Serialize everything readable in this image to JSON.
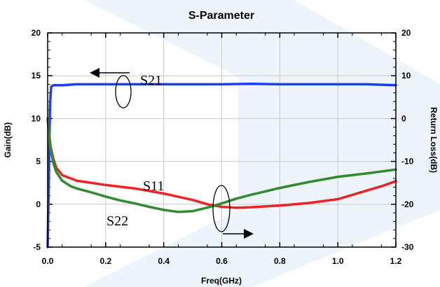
{
  "chart_data": {
    "type": "line",
    "title": "S-Parameter",
    "xlabel": "Freq(GHz)",
    "ylabel": "Gain(dB)",
    "y2label": "Return Loss(dB)",
    "xlim": [
      0.0,
      1.2
    ],
    "ylim": [
      -5,
      20
    ],
    "y2lim": [
      -30,
      20
    ],
    "grid": true,
    "x_ticks": [
      "0.0",
      "0.2",
      "0.4",
      "0.6",
      "0.8",
      "1.0",
      "1.2"
    ],
    "y_ticks": [
      "-5",
      "0",
      "5",
      "10",
      "15",
      "20"
    ],
    "y2_ticks": [
      "-30",
      "-20",
      "-10",
      "0",
      "10",
      "20"
    ],
    "series": [
      {
        "name": "S21",
        "axis": "left",
        "color": "#1e3cf0",
        "x": [
          0.0,
          0.005,
          0.008,
          0.012,
          0.02,
          0.05,
          0.1,
          0.2,
          0.3,
          0.4,
          0.5,
          0.6,
          0.7,
          0.8,
          0.9,
          1.0,
          1.1,
          1.2
        ],
        "y": [
          -5.0,
          5.0,
          11.5,
          13.7,
          13.9,
          13.9,
          14.0,
          14.0,
          14.0,
          14.0,
          14.0,
          14.0,
          14.05,
          14.0,
          14.0,
          14.0,
          14.0,
          13.9
        ]
      },
      {
        "name": "S11",
        "axis": "right",
        "color": "#ee2222",
        "x": [
          0.0,
          0.01,
          0.02,
          0.03,
          0.05,
          0.1,
          0.2,
          0.3,
          0.4,
          0.5,
          0.55,
          0.6,
          0.65,
          0.7,
          0.8,
          0.9,
          1.0,
          1.1,
          1.15,
          1.2
        ],
        "y": [
          0.0,
          -6.5,
          -9.5,
          -11.5,
          -13.2,
          -14.5,
          -15.5,
          -16.3,
          -17.5,
          -19.0,
          -20.0,
          -20.6,
          -20.8,
          -20.7,
          -20.3,
          -19.7,
          -18.8,
          -16.8,
          -15.8,
          -14.6
        ]
      },
      {
        "name": "S22",
        "axis": "right",
        "color": "#2e8b2e",
        "x": [
          0.0,
          0.01,
          0.02,
          0.03,
          0.05,
          0.08,
          0.1,
          0.15,
          0.2,
          0.25,
          0.3,
          0.35,
          0.4,
          0.45,
          0.5,
          0.55,
          0.6,
          0.65,
          0.7,
          0.75,
          0.8,
          0.9,
          1.0,
          1.1,
          1.2
        ],
        "y": [
          0.0,
          -7.0,
          -10.5,
          -12.5,
          -14.5,
          -15.8,
          -16.3,
          -17.2,
          -18.2,
          -19.1,
          -19.8,
          -20.6,
          -21.3,
          -21.8,
          -21.6,
          -20.8,
          -19.8,
          -18.7,
          -17.8,
          -17.0,
          -16.2,
          -14.8,
          -13.6,
          -12.8,
          -11.9
        ]
      }
    ],
    "annotations": [
      {
        "text": "S21",
        "direction": "left"
      },
      {
        "text": "S11"
      },
      {
        "text": "S22"
      }
    ]
  }
}
